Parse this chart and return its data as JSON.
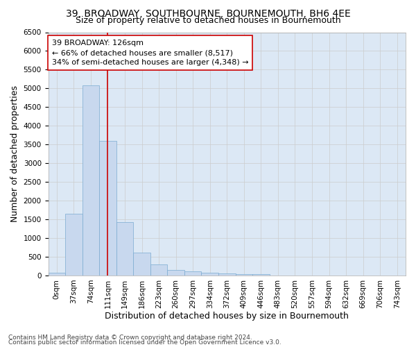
{
  "title": "39, BROADWAY, SOUTHBOURNE, BOURNEMOUTH, BH6 4EE",
  "subtitle": "Size of property relative to detached houses in Bournemouth",
  "xlabel": "Distribution of detached houses by size in Bournemouth",
  "ylabel": "Number of detached properties",
  "footnote1": "Contains HM Land Registry data © Crown copyright and database right 2024.",
  "footnote2": "Contains public sector information licensed under the Open Government Licence v3.0.",
  "bar_labels": [
    "0sqm",
    "37sqm",
    "74sqm",
    "111sqm",
    "149sqm",
    "186sqm",
    "223sqm",
    "260sqm",
    "297sqm",
    "334sqm",
    "372sqm",
    "409sqm",
    "446sqm",
    "483sqm",
    "520sqm",
    "557sqm",
    "594sqm",
    "632sqm",
    "669sqm",
    "706sqm",
    "743sqm"
  ],
  "bar_values": [
    75,
    1650,
    5075,
    3600,
    1420,
    620,
    290,
    145,
    110,
    75,
    50,
    40,
    30,
    0,
    0,
    0,
    0,
    0,
    0,
    0,
    0
  ],
  "bar_color": "#c8d8ee",
  "bar_edge_color": "#7aaad0",
  "vline_x_index": 3,
  "vline_color": "#cc0000",
  "annotation_text": "39 BROADWAY: 126sqm\n← 66% of detached houses are smaller (8,517)\n34% of semi-detached houses are larger (4,348) →",
  "annotation_box_color": "#ffffff",
  "annotation_box_edge": "#cc0000",
  "ylim": [
    0,
    6500
  ],
  "yticks": [
    0,
    500,
    1000,
    1500,
    2000,
    2500,
    3000,
    3500,
    4000,
    4500,
    5000,
    5500,
    6000,
    6500
  ],
  "grid_color": "#cccccc",
  "bg_color": "#dce8f5",
  "fig_bg_color": "#ffffff",
  "title_fontsize": 10,
  "subtitle_fontsize": 9,
  "axis_label_fontsize": 9,
  "tick_fontsize": 7.5,
  "annotation_fontsize": 8,
  "footnote_fontsize": 6.5
}
